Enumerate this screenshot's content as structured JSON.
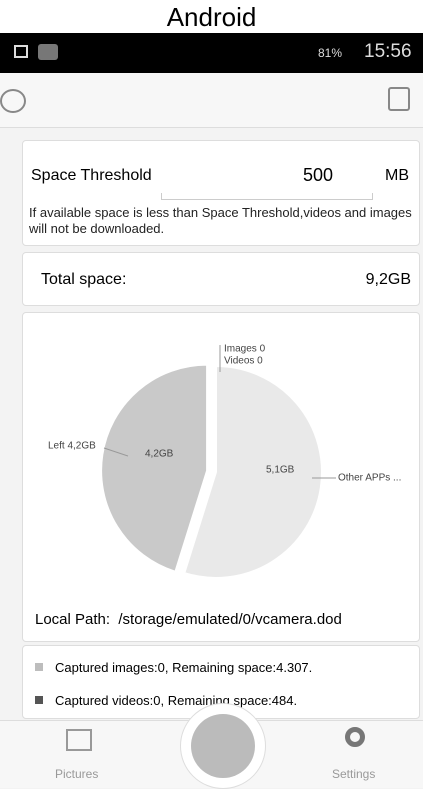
{
  "platform_label": "Android",
  "status_bar": {
    "battery": "81%",
    "time": "15:56"
  },
  "threshold": {
    "label": "Space Threshold",
    "value": 500,
    "unit": "MB",
    "note": "If available space is less than Space Threshold,videos and images will not be downloaded."
  },
  "total_space": {
    "label": "Total space:",
    "value": "9,2GB"
  },
  "pie": {
    "slices": [
      {
        "label": "Images 0",
        "value": 0,
        "color": "#e2e2e2"
      },
      {
        "label": "Videos 0",
        "value": 0,
        "color": "#e2e2e2"
      },
      {
        "label": "Other APPs ...",
        "value": 5.1,
        "value_label": "5,1GB",
        "color": "#e9e9e9"
      },
      {
        "label": "Left 4,2GB",
        "value": 4.2,
        "value_label": "4,2GB",
        "color": "#c9c9c9",
        "exploded": true
      }
    ]
  },
  "local_path": "Local Path:  /storage/emulated/0/vcamera.dod",
  "legend": [
    {
      "text": "Captured images:0, Remaining space:4.307.",
      "color": "#bdbdbd"
    },
    {
      "text": "Captured videos:0, Remaining space:484.",
      "color": "#555555"
    }
  ],
  "nav": {
    "pictures": "Pictures",
    "settings": "Settings"
  }
}
